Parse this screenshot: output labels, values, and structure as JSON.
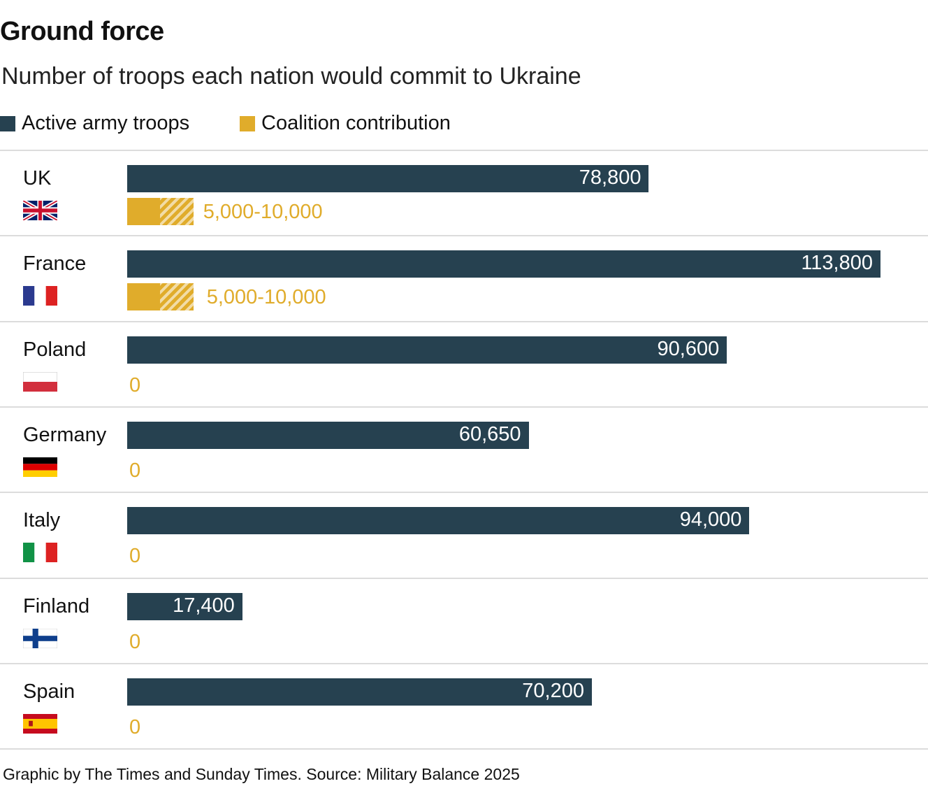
{
  "title": "Ground force",
  "subtitle": "Number of troops each nation would commit to Ukraine",
  "source": "Graphic by The Times and Sunday Times. Source: Military Balance 2025",
  "colors": {
    "active": "#264150",
    "coalition": "#e0ac2b",
    "coalition_range": "#f2dca6"
  },
  "chart_data": {
    "type": "bar",
    "orientation": "horizontal",
    "xlim": [
      0,
      113800
    ],
    "legend": [
      "Active army troops",
      "Coalition contribution"
    ],
    "legend_placement": "top-left",
    "categories": [
      "UK",
      "France",
      "Poland",
      "Germany",
      "Italy",
      "Finland",
      "Spain"
    ],
    "flags": [
      "uk-flag-icon",
      "france-flag-icon",
      "poland-flag-icon",
      "germany-flag-icon",
      "italy-flag-icon",
      "finland-flag-icon",
      "spain-flag-icon"
    ],
    "series": [
      {
        "name": "Active army troops",
        "values": [
          78800,
          113800,
          90600,
          60650,
          94000,
          17400,
          70200
        ],
        "labels": [
          "78,800",
          "113,800",
          "90,600",
          "60,650",
          "94,000",
          "17,400",
          "70,200"
        ]
      },
      {
        "name": "Coalition contribution",
        "min": [
          5000,
          5000,
          0,
          0,
          0,
          0,
          0
        ],
        "max": [
          10000,
          10000,
          0,
          0,
          0,
          0,
          0
        ],
        "labels": [
          "5,000-10,000",
          "5,000-10,000",
          "0",
          "0",
          "0",
          "0",
          "0"
        ]
      }
    ]
  }
}
